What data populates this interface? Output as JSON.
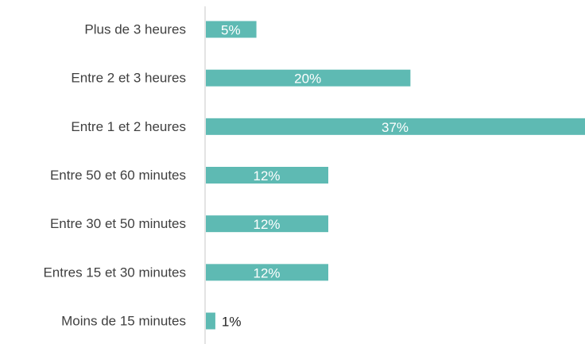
{
  "chart_data": {
    "type": "bar",
    "orientation": "horizontal",
    "categories": [
      "Plus de 3 heures",
      "Entre 2 et 3 heures",
      "Entre 1 et 2 heures",
      "Entre 50 et 60 minutes",
      "Entre 30 et 50 minutes",
      "Entres 15 et 30 minutes",
      "Moins de 15 minutes"
    ],
    "values": [
      5,
      20,
      37,
      12,
      12,
      12,
      1
    ],
    "data_labels": [
      "5%",
      "20%",
      "37%",
      "12%",
      "12%",
      "12%",
      "1%"
    ],
    "title": "",
    "xlabel": "",
    "ylabel": "",
    "xlim": [
      0,
      37
    ],
    "grid": false,
    "legend": "none",
    "bar_color": "#5ebab3",
    "inside_label_color": "#ffffff",
    "outside_label_color": "#222222",
    "category_label_color": "#404040",
    "axis_color": "#c8c8c8"
  }
}
